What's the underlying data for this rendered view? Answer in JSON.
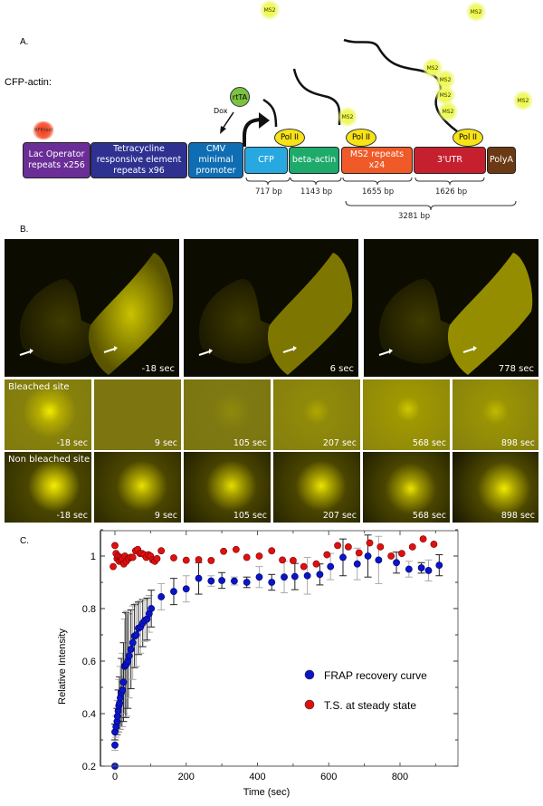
{
  "panel_a": {
    "label": "A.",
    "construct_title": "CFP-actin:",
    "rfp_label": "RFP-lacI",
    "rtta_label": "rtTA",
    "dox_label": "Dox",
    "segments": [
      {
        "label": "Lac Operator repeats x256",
        "color": "#6a2e96"
      },
      {
        "label": "Tetracycline responsive element repeats x96",
        "color": "#2e3190"
      },
      {
        "label": "CMV minimal promoter",
        "color": "#0f6db3"
      },
      {
        "label": "CFP",
        "color": "#28a8e0"
      },
      {
        "label": "beta-actin",
        "color": "#1daa6b"
      },
      {
        "label": "MS2 repeats x24",
        "color": "#f05a28"
      },
      {
        "label": "3'UTR",
        "color": "#c6202f"
      },
      {
        "label": "PolyA",
        "color": "#6b3a14"
      }
    ],
    "pol_ii_label": "Pol II",
    "ms2_label": "MS2",
    "lengths": [
      "717 bp",
      "1143 bp",
      "1655 bp",
      "1626 bp"
    ],
    "total_length": "3281 bp"
  },
  "panel_b": {
    "label": "B.",
    "cell_times": [
      "-18 sec",
      "6 sec",
      "778 sec"
    ],
    "bleached_label": "Bleached site",
    "non_bleached_label": "Non bleached site",
    "tile_times": [
      "-18 sec",
      "9 sec",
      "105 sec",
      "207 sec",
      "568 sec",
      "898 sec"
    ]
  },
  "panel_c": {
    "label": "C."
  },
  "chart_data": {
    "type": "scatter",
    "title": "",
    "xlabel": "Time (sec)",
    "ylabel": "Relative Intensity",
    "xlim": [
      -20,
      930
    ],
    "ylim": [
      0.2,
      1.1
    ],
    "x_ticks": [
      0,
      200,
      400,
      600,
      800
    ],
    "y_ticks": [
      0.2,
      0.4,
      0.6,
      0.8,
      1
    ],
    "y_tick_labels": [
      "0.2",
      "0.4",
      "0.6",
      "0.8",
      "1"
    ],
    "legend_position": "center-right",
    "series": [
      {
        "name": "FRAP recovery curve",
        "color": "#0a14c8",
        "points": [
          [
            0,
            0.2
          ],
          [
            0,
            0.28
          ],
          [
            0,
            0.33
          ],
          [
            3,
            0.35
          ],
          [
            6,
            0.37
          ],
          [
            7,
            0.39
          ],
          [
            9,
            0.41
          ],
          [
            11,
            0.43
          ],
          [
            13,
            0.44
          ],
          [
            15,
            0.46
          ],
          [
            18,
            0.48
          ],
          [
            21,
            0.49
          ],
          [
            24,
            0.52
          ],
          [
            27,
            0.58
          ],
          [
            30,
            0.585
          ],
          [
            33,
            0.59
          ],
          [
            36,
            0.6
          ],
          [
            40,
            0.62
          ],
          [
            45,
            0.645
          ],
          [
            50,
            0.67
          ],
          [
            55,
            0.695
          ],
          [
            60,
            0.7
          ],
          [
            66,
            0.725
          ],
          [
            72,
            0.73
          ],
          [
            78,
            0.745
          ],
          [
            84,
            0.755
          ],
          [
            90,
            0.76
          ],
          [
            96,
            0.78
          ],
          [
            102,
            0.8
          ],
          [
            130,
            0.845
          ],
          [
            165,
            0.865
          ],
          [
            200,
            0.875
          ],
          [
            235,
            0.915
          ],
          [
            270,
            0.905
          ],
          [
            300,
            0.907
          ],
          [
            335,
            0.905
          ],
          [
            370,
            0.9
          ],
          [
            405,
            0.92
          ],
          [
            440,
            0.9
          ],
          [
            475,
            0.92
          ],
          [
            505,
            0.922
          ],
          [
            540,
            0.925
          ],
          [
            575,
            0.93
          ],
          [
            605,
            0.96
          ],
          [
            640,
            0.995
          ],
          [
            680,
            0.97
          ],
          [
            710,
            1.0
          ],
          [
            740,
            0.985
          ],
          [
            790,
            0.975
          ],
          [
            825,
            0.95
          ],
          [
            860,
            0.955
          ],
          [
            880,
            0.945
          ],
          [
            910,
            0.965
          ]
        ],
        "errors": [
          0,
          0.02,
          0.03,
          0.04,
          0.05,
          0.06,
          0.08,
          0.1,
          0.1,
          0.12,
          0.13,
          0.14,
          0.15,
          0.18,
          0.2,
          0.2,
          0.18,
          0.16,
          0.15,
          0.14,
          0.12,
          0.12,
          0.1,
          0.1,
          0.09,
          0.08,
          0.08,
          0.07,
          0.07,
          0.05,
          0.05,
          0.05,
          0.06,
          0.02,
          0.03,
          0.015,
          0.02,
          0.04,
          0.03,
          0.06,
          0.05,
          0.07,
          0.04,
          0.05,
          0.07,
          0.06,
          0.08,
          0.09,
          0.04,
          0.03,
          0.02,
          0.04,
          0.04
        ]
      },
      {
        "name": "T.S. at steady state",
        "color": "#e01010",
        "points": [
          [
            -5,
            0.96
          ],
          [
            0,
            1.04
          ],
          [
            3,
            1.01
          ],
          [
            6,
            0.99
          ],
          [
            9,
            1.0
          ],
          [
            12,
            0.98
          ],
          [
            15,
            0.995
          ],
          [
            18,
            0.985
          ],
          [
            21,
            0.99
          ],
          [
            25,
            0.97
          ],
          [
            28,
            1.0
          ],
          [
            32,
            0.98
          ],
          [
            38,
            0.99
          ],
          [
            44,
            0.995
          ],
          [
            50,
            0.995
          ],
          [
            58,
            1.02
          ],
          [
            64,
            1.025
          ],
          [
            70,
            1.01
          ],
          [
            76,
            1.01
          ],
          [
            82,
            1.005
          ],
          [
            88,
            0.995
          ],
          [
            94,
            1.005
          ],
          [
            100,
            1.0
          ],
          [
            106,
            0.985
          ],
          [
            112,
            0.98
          ],
          [
            118,
            0.99
          ],
          [
            130,
            1.02
          ],
          [
            165,
            0.993
          ],
          [
            200,
            0.984
          ],
          [
            235,
            0.986
          ],
          [
            270,
            0.983
          ],
          [
            305,
            1.018
          ],
          [
            340,
            1.025
          ],
          [
            370,
            0.995
          ],
          [
            405,
            1.0
          ],
          [
            440,
            1.02
          ],
          [
            470,
            0.985
          ],
          [
            500,
            0.983
          ],
          [
            530,
            0.96
          ],
          [
            565,
            0.97
          ],
          [
            595,
            1.005
          ],
          [
            625,
            1.04
          ],
          [
            655,
            1.035
          ],
          [
            685,
            1.012
          ],
          [
            715,
            1.05
          ],
          [
            745,
            1.035
          ],
          [
            775,
            1.0
          ],
          [
            805,
            1.01
          ],
          [
            835,
            1.035
          ],
          [
            865,
            1.065
          ],
          [
            895,
            1.045
          ]
        ]
      }
    ]
  }
}
